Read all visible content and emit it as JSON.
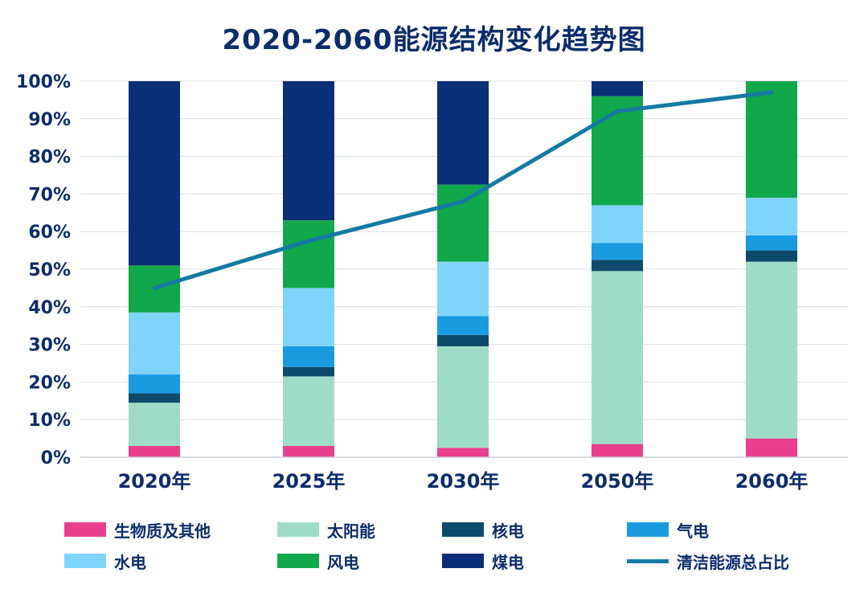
{
  "chart_data": {
    "type": "bar",
    "title": "2020-2060能源结构变化趋势图",
    "categories": [
      "2020年",
      "2025年",
      "2030年",
      "2050年",
      "2060年"
    ],
    "y_ticks": [
      "0%",
      "10%",
      "20%",
      "30%",
      "40%",
      "50%",
      "60%",
      "70%",
      "80%",
      "90%",
      "100%"
    ],
    "ylim": [
      0,
      100
    ],
    "grid": true,
    "stacked": true,
    "legend_position": "bottom",
    "series": [
      {
        "name": "生物质及其他",
        "color": "#e8408c",
        "values": [
          3,
          3,
          2.5,
          3.5,
          5
        ]
      },
      {
        "name": "太阳能",
        "color": "#9fdcc7",
        "values": [
          11.5,
          18.5,
          27,
          46,
          47
        ]
      },
      {
        "name": "核电",
        "color": "#0d4a6b",
        "values": [
          2.5,
          2.5,
          3,
          3,
          3
        ]
      },
      {
        "name": "气电",
        "color": "#1a9be0",
        "values": [
          5,
          5.5,
          5,
          4.5,
          4
        ]
      },
      {
        "name": "水电",
        "color": "#7fd4fa",
        "values": [
          16.5,
          15.5,
          14.5,
          10,
          10
        ]
      },
      {
        "name": "风电",
        "color": "#10a84a",
        "values": [
          12.5,
          18,
          20.5,
          29,
          31
        ]
      },
      {
        "name": "煤电",
        "color": "#0b2f77",
        "values": [
          49,
          37,
          27.5,
          4,
          0
        ]
      }
    ],
    "line_series": {
      "name": "清洁能源总占比",
      "color": "#157aa3",
      "values": [
        45,
        57.5,
        68,
        92,
        97
      ]
    }
  }
}
